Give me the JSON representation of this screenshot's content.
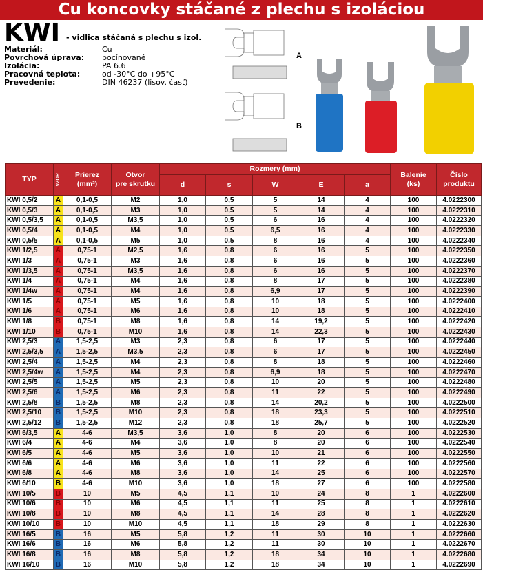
{
  "title": "Cu koncovky stáčané z plechu s izoláciou",
  "product": {
    "code": "KWI",
    "subtitle": "- vidlica stáčaná s plechu s izol."
  },
  "specs": [
    {
      "label": "Materiál:",
      "value": "Cu"
    },
    {
      "label": "Povrchová úprava:",
      "value": "pocínované"
    },
    {
      "label": "Izolácia:",
      "value": "PA 6.6"
    },
    {
      "label": "Pracovná teplota:",
      "value": "od -30°C do +95°C"
    },
    {
      "label": "Prevedenie:",
      "value": "DIN 46237 (lisov. časť)"
    }
  ],
  "drawing_labels": {
    "a": "A",
    "b": "B"
  },
  "colors": {
    "header": "#c1282d",
    "yellow": "#f7e21a",
    "red": "#d8171c",
    "blue": "#1f6ab4",
    "stripe": "#fbe8e2"
  },
  "table": {
    "headers": {
      "typ": "TYP",
      "vzor": "VZOR",
      "prierez": "Prierez",
      "prierez_unit": "(mm²)",
      "otvor": "Otvor",
      "otvor_sub": "pre skrutku",
      "rozmery": "Rozmery (mm)",
      "d": "d",
      "s": "s",
      "w": "W",
      "e": "E",
      "a": "a",
      "balenie": "Balenie",
      "balenie_unit": "(ks)",
      "cislo": "Číslo",
      "cislo_sub": "produktu"
    },
    "rows": [
      [
        "KWI 0,5/2",
        "A",
        "yellow",
        "0,1-0,5",
        "M2",
        "1,0",
        "0,5",
        "5",
        "14",
        "4",
        "100",
        "4.0222300"
      ],
      [
        "KWI 0,5/3",
        "A",
        "yellow",
        "0,1-0,5",
        "M3",
        "1,0",
        "0,5",
        "5",
        "14",
        "4",
        "100",
        "4.0222310"
      ],
      [
        "KWI 0,5/3,5",
        "A",
        "yellow",
        "0,1-0,5",
        "M3,5",
        "1,0",
        "0,5",
        "6",
        "16",
        "4",
        "100",
        "4.0222320"
      ],
      [
        "KWI 0,5/4",
        "A",
        "yellow",
        "0,1-0,5",
        "M4",
        "1,0",
        "0,5",
        "6,5",
        "16",
        "4",
        "100",
        "4.0222330"
      ],
      [
        "KWI 0,5/5",
        "A",
        "yellow",
        "0,1-0,5",
        "M5",
        "1,0",
        "0,5",
        "8",
        "16",
        "4",
        "100",
        "4.0222340"
      ],
      [
        "KWI 1/2,5",
        "A",
        "red",
        "0,75-1",
        "M2,5",
        "1,6",
        "0,8",
        "6",
        "16",
        "5",
        "100",
        "4.0222350"
      ],
      [
        "KWI 1/3",
        "A",
        "red",
        "0,75-1",
        "M3",
        "1,6",
        "0,8",
        "6",
        "16",
        "5",
        "100",
        "4.0222360"
      ],
      [
        "KWI 1/3,5",
        "A",
        "red",
        "0,75-1",
        "M3,5",
        "1,6",
        "0,8",
        "6",
        "16",
        "5",
        "100",
        "4.0222370"
      ],
      [
        "KWI 1/4",
        "A",
        "red",
        "0,75-1",
        "M4",
        "1,6",
        "0,8",
        "8",
        "17",
        "5",
        "100",
        "4.0222380"
      ],
      [
        "KWI 1/4w",
        "A",
        "red",
        "0,75-1",
        "M4",
        "1,6",
        "0,8",
        "6,9",
        "17",
        "5",
        "100",
        "4.0222390"
      ],
      [
        "KWI 1/5",
        "A",
        "red",
        "0,75-1",
        "M5",
        "1,6",
        "0,8",
        "10",
        "18",
        "5",
        "100",
        "4.0222400"
      ],
      [
        "KWI 1/6",
        "A",
        "red",
        "0,75-1",
        "M6",
        "1,6",
        "0,8",
        "10",
        "18",
        "5",
        "100",
        "4.0222410"
      ],
      [
        "KWI 1/8",
        "B",
        "red",
        "0,75-1",
        "M8",
        "1,6",
        "0,8",
        "14",
        "19,2",
        "5",
        "100",
        "4.0222420"
      ],
      [
        "KWI 1/10",
        "B",
        "red",
        "0,75-1",
        "M10",
        "1,6",
        "0,8",
        "14",
        "22,3",
        "5",
        "100",
        "4.0222430"
      ],
      [
        "KWI 2,5/3",
        "A",
        "blue",
        "1,5-2,5",
        "M3",
        "2,3",
        "0,8",
        "6",
        "17",
        "5",
        "100",
        "4.0222440"
      ],
      [
        "KWI 2,5/3,5",
        "A",
        "blue",
        "1,5-2,5",
        "M3,5",
        "2,3",
        "0,8",
        "6",
        "17",
        "5",
        "100",
        "4.0222450"
      ],
      [
        "KWI 2,5/4",
        "A",
        "blue",
        "1,5-2,5",
        "M4",
        "2,3",
        "0,8",
        "8",
        "18",
        "5",
        "100",
        "4.0222460"
      ],
      [
        "KWI 2,5/4w",
        "A",
        "blue",
        "1,5-2,5",
        "M4",
        "2,3",
        "0,8",
        "6,9",
        "18",
        "5",
        "100",
        "4.0222470"
      ],
      [
        "KWI 2,5/5",
        "A",
        "blue",
        "1,5-2,5",
        "M5",
        "2,3",
        "0,8",
        "10",
        "20",
        "5",
        "100",
        "4.0222480"
      ],
      [
        "KWI 2,5/6",
        "A",
        "blue",
        "1,5-2,5",
        "M6",
        "2,3",
        "0,8",
        "11",
        "22",
        "5",
        "100",
        "4.0222490"
      ],
      [
        "KWI 2,5/8",
        "B",
        "blue",
        "1,5-2,5",
        "M8",
        "2,3",
        "0,8",
        "14",
        "20,2",
        "5",
        "100",
        "4.0222500"
      ],
      [
        "KWI 2,5/10",
        "B",
        "blue",
        "1,5-2,5",
        "M10",
        "2,3",
        "0,8",
        "18",
        "23,3",
        "5",
        "100",
        "4.0222510"
      ],
      [
        "KWI 2,5/12",
        "B",
        "blue",
        "1,5-2,5",
        "M12",
        "2,3",
        "0,8",
        "18",
        "25,7",
        "5",
        "100",
        "4.0222520"
      ],
      [
        "KWI 6/3,5",
        "A",
        "yellow",
        "4-6",
        "M3,5",
        "3,6",
        "1,0",
        "8",
        "20",
        "6",
        "100",
        "4.0222530"
      ],
      [
        "KWI 6/4",
        "A",
        "yellow",
        "4-6",
        "M4",
        "3,6",
        "1,0",
        "8",
        "20",
        "6",
        "100",
        "4.0222540"
      ],
      [
        "KWI 6/5",
        "A",
        "yellow",
        "4-6",
        "M5",
        "3,6",
        "1,0",
        "10",
        "21",
        "6",
        "100",
        "4.0222550"
      ],
      [
        "KWI 6/6",
        "A",
        "yellow",
        "4-6",
        "M6",
        "3,6",
        "1,0",
        "11",
        "22",
        "6",
        "100",
        "4.0222560"
      ],
      [
        "KWI 6/8",
        "A",
        "yellow",
        "4-6",
        "M8",
        "3,6",
        "1,0",
        "14",
        "25",
        "6",
        "100",
        "4.0222570"
      ],
      [
        "KWI 6/10",
        "B",
        "yellow",
        "4-6",
        "M10",
        "3,6",
        "1,0",
        "18",
        "27",
        "6",
        "100",
        "4.0222580"
      ],
      [
        "KWI 10/5",
        "B",
        "red",
        "10",
        "M5",
        "4,5",
        "1,1",
        "10",
        "24",
        "8",
        "1",
        "4.0222600"
      ],
      [
        "KWI 10/6",
        "B",
        "red",
        "10",
        "M6",
        "4,5",
        "1,1",
        "11",
        "25",
        "8",
        "1",
        "4.0222610"
      ],
      [
        "KWI 10/8",
        "B",
        "red",
        "10",
        "M8",
        "4,5",
        "1,1",
        "14",
        "28",
        "8",
        "1",
        "4.0222620"
      ],
      [
        "KWI 10/10",
        "B",
        "red",
        "10",
        "M10",
        "4,5",
        "1,1",
        "18",
        "29",
        "8",
        "1",
        "4.0222630"
      ],
      [
        "KWI 16/5",
        "B",
        "blue",
        "16",
        "M5",
        "5,8",
        "1,2",
        "11",
        "30",
        "10",
        "1",
        "4.0222660"
      ],
      [
        "KWI 16/6",
        "B",
        "blue",
        "16",
        "M6",
        "5,8",
        "1,2",
        "11",
        "30",
        "10",
        "1",
        "4.0222670"
      ],
      [
        "KWI 16/8",
        "B",
        "blue",
        "16",
        "M8",
        "5,8",
        "1,2",
        "18",
        "34",
        "10",
        "1",
        "4.0222680"
      ],
      [
        "KWI 16/10",
        "B",
        "blue",
        "16",
        "M10",
        "5,8",
        "1,2",
        "18",
        "34",
        "10",
        "1",
        "4.0222690"
      ]
    ]
  }
}
